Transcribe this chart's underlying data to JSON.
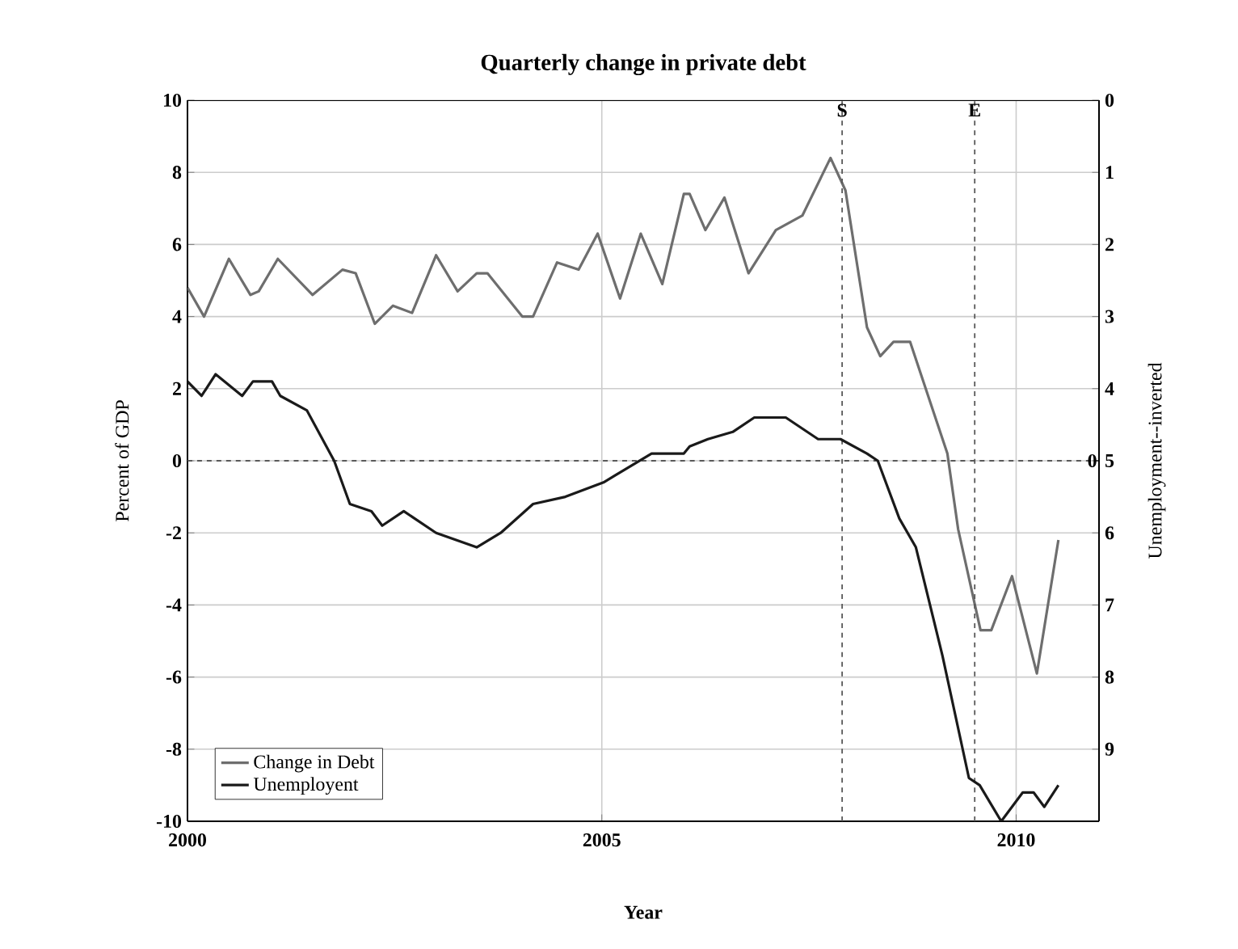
{
  "chart_data": {
    "type": "line",
    "title": "Quarterly change in private debt",
    "xlabel": "Year",
    "ylabel": "Percent of GDP",
    "y2label": "Unemployment--inverted",
    "xlim": [
      2000,
      2011
    ],
    "xticks": [
      2000,
      2005,
      2010
    ],
    "ylim": [
      -10,
      10
    ],
    "yticks": [
      -10,
      -8,
      -6,
      -4,
      -2,
      0,
      2,
      4,
      6,
      8,
      10
    ],
    "y2lim": [
      10,
      0
    ],
    "y2ticks": [
      0,
      1,
      2,
      3,
      4,
      5,
      6,
      7,
      8,
      9
    ],
    "grid": true,
    "legend": "bottom left",
    "series": [
      {
        "name": "Change in Debt",
        "color": "#6e6e6e",
        "x": [
          2000.0,
          2000.2,
          2000.5,
          2000.76,
          2000.86,
          2001.09,
          2001.51,
          2001.87,
          2002.03,
          2002.26,
          2002.48,
          2002.71,
          2003.0,
          2003.26,
          2003.49,
          2003.62,
          2004.04,
          2004.17,
          2004.46,
          2004.72,
          2004.95,
          2005.22,
          2005.47,
          2005.73,
          2005.99,
          2006.06,
          2006.25,
          2006.48,
          2006.77,
          2007.1,
          2007.42,
          2007.76,
          2007.94,
          2008.2,
          2008.36,
          2008.52,
          2008.72,
          2009.17,
          2009.3,
          2009.57,
          2009.7,
          2009.95,
          2010.25,
          2010.51
        ],
        "values": [
          4.8,
          4.0,
          5.6,
          4.6,
          4.7,
          5.6,
          4.6,
          5.3,
          5.2,
          3.8,
          4.3,
          4.1,
          5.7,
          4.7,
          5.2,
          5.2,
          4.0,
          4.0,
          5.5,
          5.3,
          6.3,
          4.5,
          6.3,
          4.9,
          7.4,
          7.4,
          6.4,
          7.3,
          5.2,
          6.4,
          6.8,
          8.4,
          7.5,
          3.7,
          2.9,
          3.3,
          3.3,
          0.2,
          -1.9,
          -4.7,
          -4.7,
          -3.2,
          -5.9,
          -2.2
        ]
      },
      {
        "name": "Unemployent",
        "color": "#1a1a1a",
        "axis": "y2",
        "x": [
          2000.0,
          2000.17,
          2000.34,
          2000.66,
          2000.79,
          2001.02,
          2001.12,
          2001.44,
          2001.77,
          2001.96,
          2002.22,
          2002.35,
          2002.61,
          2003.0,
          2003.49,
          2003.78,
          2004.17,
          2004.56,
          2005.02,
          2005.6,
          2005.99,
          2006.06,
          2006.28,
          2006.58,
          2006.84,
          2007.22,
          2007.61,
          2007.88,
          2008.2,
          2008.33,
          2008.59,
          2008.79,
          2009.11,
          2009.43,
          2009.56,
          2009.82,
          2010.08,
          2010.21,
          2010.34,
          2010.51
        ],
        "values": [
          3.9,
          4.1,
          3.8,
          4.1,
          3.9,
          3.9,
          4.1,
          4.3,
          5.0,
          5.6,
          5.7,
          5.9,
          5.7,
          6.0,
          6.2,
          6.0,
          5.6,
          5.5,
          5.3,
          4.9,
          4.9,
          4.8,
          4.7,
          4.6,
          4.4,
          4.4,
          4.7,
          4.7,
          4.9,
          5.0,
          5.8,
          6.2,
          7.7,
          9.4,
          9.5,
          10.0,
          9.6,
          9.6,
          9.8,
          9.5
        ]
      }
    ],
    "ref_lines": [
      {
        "axis": "y",
        "value": 0,
        "label": "0",
        "line_style": "dashed"
      },
      {
        "axis": "x",
        "value": 2007.9,
        "label": "S",
        "line_style": "dashed"
      },
      {
        "axis": "x",
        "value": 2009.5,
        "label": "E",
        "line_style": "dashed"
      }
    ]
  }
}
